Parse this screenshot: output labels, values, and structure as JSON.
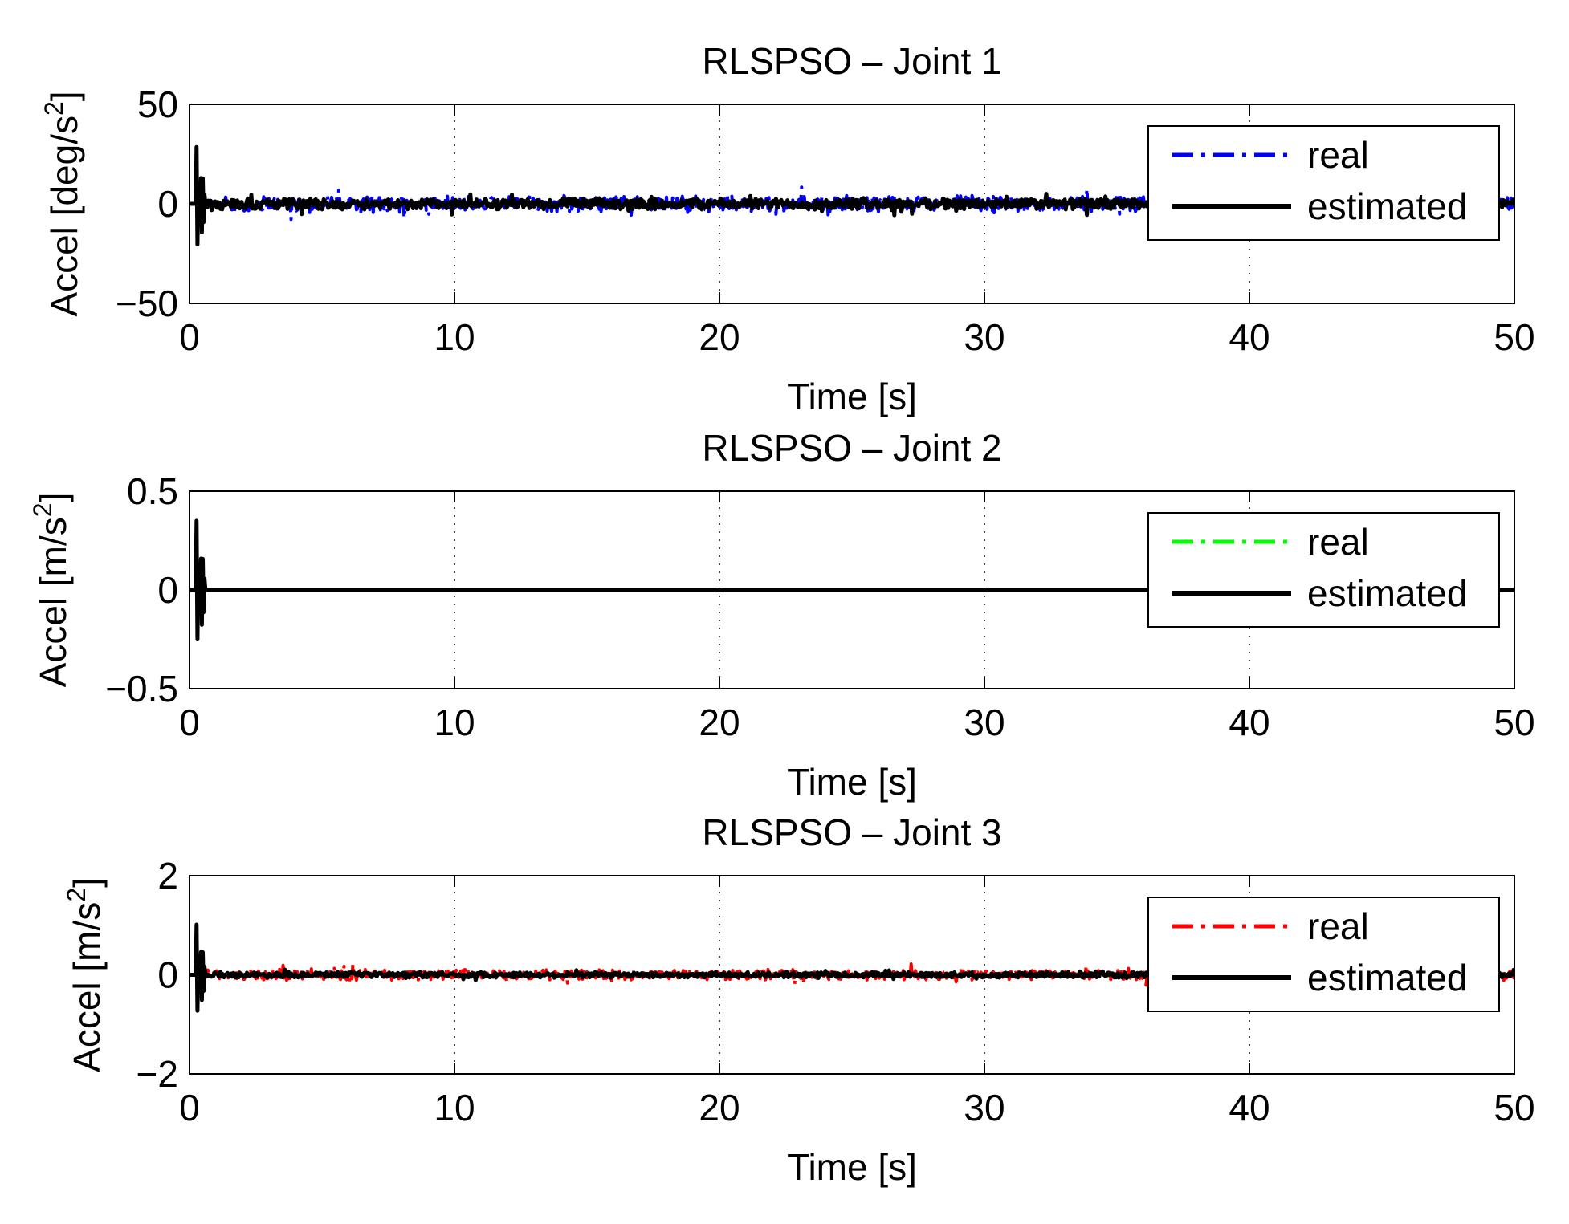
{
  "chart_data": [
    {
      "type": "line",
      "title": "RLSPSO – Joint 1",
      "xlabel": "Time [s]",
      "ylabel": "Accel [deg/s",
      "ylabel_sup": "2",
      "ylabel_end": "]",
      "xlim": [
        0,
        50
      ],
      "ylim": [
        -50,
        50
      ],
      "xticks": [
        0,
        10,
        20,
        30,
        40,
        50
      ],
      "yticks": [
        -50,
        0,
        50
      ],
      "ytick_labels": [
        "−50",
        "0",
        "50"
      ],
      "grid": "x-dotted",
      "legend_position": "top-right",
      "series": [
        {
          "name": "real",
          "color": "#0000ff",
          "style": "dash-dot",
          "noise_amplitude": 4.5,
          "spike": null
        },
        {
          "name": "estimated",
          "color": "#000000",
          "style": "solid",
          "noise_amplitude": 3.0,
          "spike": {
            "t": 0.4,
            "amplitude": 31
          }
        }
      ]
    },
    {
      "type": "line",
      "title": "RLSPSO – Joint 2",
      "xlabel": "Time [s]",
      "ylabel": "Accel [m/s",
      "ylabel_sup": "2",
      "ylabel_end": "]",
      "xlim": [
        0,
        50
      ],
      "ylim": [
        -0.5,
        0.5
      ],
      "xticks": [
        0,
        10,
        20,
        30,
        40,
        50
      ],
      "yticks": [
        -0.5,
        0,
        0.5
      ],
      "ytick_labels": [
        "−0.5",
        "0",
        "0.5"
      ],
      "grid": "x-dotted",
      "legend_position": "top-right",
      "series": [
        {
          "name": "real",
          "color": "#00ff00",
          "style": "dash-dot",
          "noise_amplitude": 0,
          "spike": null
        },
        {
          "name": "estimated",
          "color": "#000000",
          "style": "solid",
          "noise_amplitude": 0,
          "spike": {
            "t": 0.4,
            "amplitude": 0.38
          }
        }
      ]
    },
    {
      "type": "line",
      "title": "RLSPSO – Joint 3",
      "xlabel": "Time [s]",
      "ylabel": "Accel [m/s",
      "ylabel_sup": "2",
      "ylabel_end": "]",
      "xlim": [
        0,
        50
      ],
      "ylim": [
        -2,
        2
      ],
      "xticks": [
        0,
        10,
        20,
        30,
        40,
        50
      ],
      "yticks": [
        -2,
        0,
        2
      ],
      "ytick_labels": [
        "−2",
        "0",
        "2"
      ],
      "grid": "x-dotted",
      "legend_position": "top-right",
      "series": [
        {
          "name": "real",
          "color": "#ff0000",
          "style": "dash-dot",
          "noise_amplitude": 0.12,
          "spike": null
        },
        {
          "name": "estimated",
          "color": "#000000",
          "style": "solid",
          "noise_amplitude": 0.06,
          "spike": {
            "t": 0.4,
            "amplitude": 1.1
          }
        }
      ]
    }
  ]
}
